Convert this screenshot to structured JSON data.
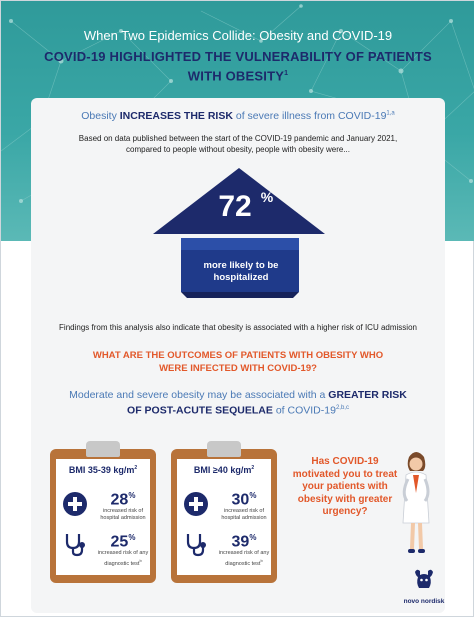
{
  "header": {
    "subtitle": "When Two Epidemics Collide: Obesity and COVID-19",
    "title": "COVID-19 HIGHLIGHTED THE VULNERABILITY OF PATIENTS WITH OBESITY",
    "title_ref": "1"
  },
  "intro": {
    "prefix": "Obesity ",
    "emphasis": "INCREASES THE RISK",
    "suffix": " of severe illness from COVID-19",
    "ref": "1,a"
  },
  "basis": "Based on data published between the start of the COVID-19 pandemic and January 2021, compared to people without obesity, people with obesity were...",
  "hospitalized": {
    "value": "72",
    "unit": "%",
    "label": "more likely to be hospitalized"
  },
  "findings": "Findings from this analysis also indicate that obesity is associated with a higher risk of ICU admission",
  "outcomes_heading": "WHAT ARE THE OUTCOMES OF PATIENTS WITH OBESITY WHO WERE INFECTED WITH COVID-19?",
  "moderate": {
    "prefix": "Moderate and severe obesity may be associated with a ",
    "emphasis": "GREATER RISK OF POST-ACUTE SEQUELAE",
    "suffix": " of COVID-19",
    "ref": "2,b,c"
  },
  "clipboards": [
    {
      "bmi": "BMI 35-39 kg/m",
      "bmi_sup": "2",
      "admission_value": "28",
      "admission_label": "increased risk of hospital admission",
      "test_value": "25",
      "test_label": "increased risk of any diagnostic test",
      "test_ref": "b"
    },
    {
      "bmi": "BMI ≥40 kg/m",
      "bmi_sup": "2",
      "admission_value": "30",
      "admission_label": "increased risk of hospital admission",
      "test_value": "39",
      "test_label": "increased risk of any diagnostic test",
      "test_ref": "b"
    }
  ],
  "percent_unit": "%",
  "question": "Has COVID-19 motivated you to treat your patients with obesity with greater urgency?",
  "logo": {
    "text": "novo nordisk",
    "icon": "apis-bull-icon"
  },
  "colors": {
    "teal": "#3aa7a6",
    "navy": "#1d2a6b",
    "orange": "#e2582a",
    "blue_text": "#4a79b5",
    "clipboard": "#b8733a"
  },
  "icons": [
    "plus-circle-icon",
    "stethoscope-icon",
    "doctor-illustration",
    "network-pattern"
  ]
}
